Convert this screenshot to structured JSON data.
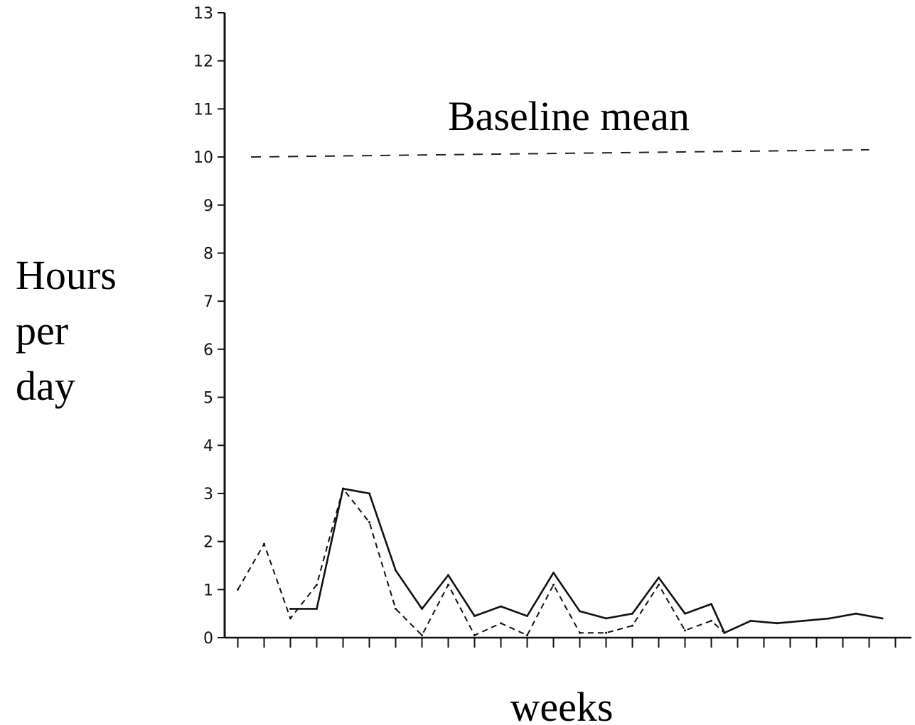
{
  "chart_data": {
    "type": "line",
    "xlabel": "weeks",
    "ylabel": "Hours per day",
    "ylabel_lines": [
      "Hours",
      "per",
      "day"
    ],
    "ylim": [
      0,
      13
    ],
    "xlim": [
      0,
      26
    ],
    "y_ticks": [
      "0",
      "1",
      "2",
      "3",
      "4",
      "5",
      "6",
      "7",
      "8",
      "9",
      "10",
      "11",
      "12",
      "13"
    ],
    "x_tick_count": 26,
    "x_ticks_labeled": false,
    "grid": false,
    "legend": "none",
    "annotation": "Baseline mean",
    "baseline": {
      "label": "Baseline mean",
      "x": [
        1,
        24.5
      ],
      "y": [
        10.0,
        10.15
      ]
    },
    "series": [
      {
        "style": "solid",
        "x": [
          2.5,
          3.5,
          4.5,
          5.5,
          6.5,
          7.5,
          8.5,
          9.5,
          10.5,
          11.5,
          12.5,
          13.5,
          14.5,
          15.5,
          16.5,
          17.5,
          18.5,
          19,
          20,
          21,
          22,
          23,
          24,
          25
        ],
        "y": [
          0.6,
          0.6,
          3.1,
          3.0,
          1.4,
          0.6,
          1.3,
          0.45,
          0.65,
          0.45,
          1.35,
          0.55,
          0.4,
          0.5,
          1.25,
          0.5,
          0.7,
          0.1,
          0.35,
          0.3,
          0.35,
          0.4,
          0.5,
          0.4
        ]
      },
      {
        "style": "dashed",
        "x": [
          0.5,
          1.5,
          2.5,
          3.5,
          4.5,
          5.5,
          6.5,
          7.5,
          8.5,
          9.5,
          10.5,
          11.5,
          12.5,
          13.5,
          14.5,
          15.5,
          16.5,
          17.5,
          18.5,
          19
        ],
        "y": [
          1.0,
          1.95,
          0.4,
          1.1,
          3.1,
          2.4,
          0.6,
          0.05,
          1.1,
          0.05,
          0.3,
          0.05,
          1.1,
          0.1,
          0.1,
          0.25,
          1.1,
          0.15,
          0.35,
          0.1
        ]
      }
    ]
  }
}
